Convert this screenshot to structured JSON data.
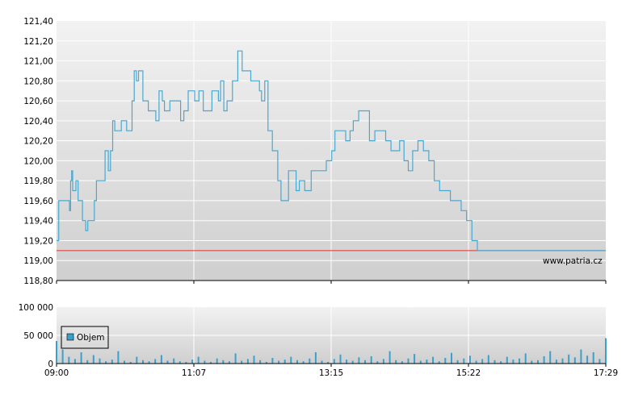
{
  "watermark": "www.patria.cz",
  "legend": {
    "label": "Objem"
  },
  "colors": {
    "price_line": "#4aa8d0",
    "reference_line": "#e03030",
    "volume_bar": "#3aa0cc",
    "grid": "#ffffff",
    "plot_top": "#f2f2f2",
    "plot_bottom": "#cfcfcf"
  },
  "chart_data": [
    {
      "type": "line",
      "name": "price",
      "title": "",
      "xlabel": "",
      "ylabel": "",
      "ylim": [
        118.8,
        121.4
      ],
      "yticks": [
        "121,40",
        "121,20",
        "121,00",
        "120,80",
        "120,60",
        "120,40",
        "120,20",
        "120,00",
        "119,80",
        "119,60",
        "119,40",
        "119,20",
        "119,00",
        "118,80"
      ],
      "x_axis_ticks": [
        "09:00",
        "11:07",
        "13:15",
        "15:22",
        "17:29"
      ],
      "reference_line": 119.1,
      "grid": true,
      "series": [
        {
          "time_minutes_since_0900": [
            0,
            2,
            3,
            6,
            12,
            13,
            14,
            15,
            17,
            18,
            20,
            22,
            24,
            27,
            29,
            32,
            35,
            37,
            38,
            40,
            45,
            48,
            50,
            52,
            54,
            57,
            60,
            62,
            65,
            70,
            72,
            74,
            76,
            80,
            82,
            85,
            86,
            88,
            90,
            92,
            95,
            98,
            100,
            105,
            110,
            115,
            117,
            118,
            120,
            122,
            124,
            126,
            128,
            130,
            132,
            134,
            136,
            138,
            140,
            142,
            144,
            146,
            148,
            150,
            152,
            155,
            158,
            160,
            163,
            165,
            168,
            172,
            176,
            180,
            182,
            185,
            188,
            190,
            193,
            196,
            200,
            205,
            208,
            210,
            212,
            215,
            218,
            222,
            225,
            230,
            233,
            236,
            238,
            240,
            242,
            245,
            250,
            255,
            258,
            262,
            266,
            268,
            270,
            272,
            275,
            280,
            285,
            290,
            295,
            300,
            305,
            310,
            315,
            318,
            322,
            326,
            330,
            335,
            340,
            345,
            350,
            355,
            360,
            365,
            370,
            375,
            380,
            385,
            390,
            395,
            400,
            405,
            410,
            415,
            420,
            425,
            430,
            435,
            440,
            445,
            450,
            455,
            460,
            465,
            470,
            475,
            478,
            480,
            483,
            486,
            489,
            493,
            496,
            499,
            503,
            506,
            509
          ],
          "price": [
            119.2,
            119.6,
            119.6,
            119.6,
            119.5,
            119.8,
            119.9,
            119.7,
            119.7,
            119.8,
            119.6,
            119.6,
            119.4,
            119.3,
            119.4,
            119.4,
            119.6,
            119.8,
            119.8,
            119.8,
            120.1,
            119.9,
            120.1,
            120.4,
            120.3,
            120.3,
            120.4,
            120.4,
            120.3,
            120.6,
            120.9,
            120.8,
            120.9,
            120.6,
            120.6,
            120.5,
            120.5,
            120.5,
            120.5,
            120.4,
            120.7,
            120.6,
            120.5,
            120.6,
            120.6,
            120.4,
            120.4,
            120.5,
            120.5,
            120.7,
            120.7,
            120.7,
            120.6,
            120.6,
            120.7,
            120.7,
            120.5,
            120.5,
            120.5,
            120.5,
            120.7,
            120.7,
            120.7,
            120.6,
            120.8,
            120.5,
            120.6,
            120.6,
            120.8,
            120.8,
            121.1,
            120.9,
            120.9,
            120.8,
            120.8,
            120.8,
            120.7,
            120.6,
            120.8,
            120.3,
            120.1,
            119.8,
            119.6,
            119.6,
            119.6,
            119.9,
            119.9,
            119.7,
            119.8,
            119.7,
            119.7,
            119.9,
            119.9,
            119.9,
            119.9,
            119.9,
            120.0,
            120.1,
            120.3,
            120.3,
            120.3,
            120.2,
            120.2,
            120.3,
            120.4,
            120.5,
            120.5,
            120.2,
            120.3,
            120.3,
            120.2,
            120.1,
            120.1,
            120.2,
            120.0,
            119.9,
            120.1,
            120.2,
            120.1,
            120.0,
            119.8,
            119.7,
            119.7,
            119.6,
            119.6,
            119.5,
            119.4,
            119.2,
            119.1,
            119.1,
            119.1,
            119.1,
            119.1,
            119.1,
            119.1,
            119.1,
            119.1,
            119.1,
            119.1,
            119.1,
            119.1,
            119.1,
            119.1,
            119.1,
            119.1,
            119.1,
            119.1,
            119.1,
            119.1,
            119.1,
            119.1,
            119.1,
            119.1,
            119.1,
            119.1,
            119.1,
            119.1
          ]
        }
      ]
    },
    {
      "type": "bar",
      "name": "volume",
      "title": "",
      "xlabel": "",
      "ylabel": "",
      "ylim": [
        0,
        100000
      ],
      "yticks": [
        "100 000",
        "50 000",
        "0"
      ],
      "x_axis_ticks": [
        "09:00",
        "11:07",
        "13:15",
        "15:22",
        "17:29"
      ],
      "grid": true,
      "series": [
        {
          "name": "Objem",
          "volume_sampled": [
            40000,
            25000,
            12000,
            8000,
            20000,
            6000,
            15000,
            9000,
            4000,
            7000,
            22000,
            5000,
            3000,
            12000,
            6000,
            4000,
            8000,
            15000,
            5000,
            9000,
            4000,
            3000,
            7000,
            12000,
            5000,
            3000,
            9000,
            6000,
            4000,
            18000,
            5000,
            8000,
            14000,
            6000,
            3000,
            10000,
            5000,
            7000,
            12000,
            6000,
            4000,
            9000,
            20000,
            5000,
            3000,
            8000,
            16000,
            7000,
            5000,
            11000,
            6000,
            13000,
            4000,
            8000,
            22000,
            6000,
            4000,
            9000,
            17000,
            5000,
            7000,
            12000,
            4000,
            10000,
            19000,
            6000,
            9000,
            14000,
            5000,
            8000,
            15000,
            6000,
            4000,
            12000,
            7000,
            9000,
            18000,
            5000,
            6000,
            13000,
            22000,
            7000,
            9000,
            16000,
            11000,
            25000,
            14000,
            20000,
            8000,
            45000
          ]
        }
      ]
    }
  ]
}
